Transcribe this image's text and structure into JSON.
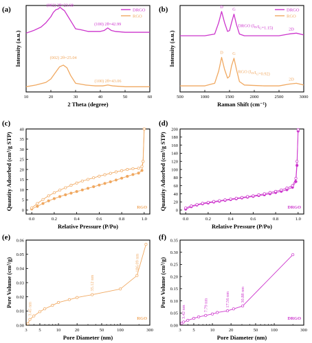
{
  "colors": {
    "magenta": "#cc33cc",
    "orange": "#f0a860",
    "axis": "#000000"
  },
  "chart_data": [
    {
      "id": "a",
      "panel_label": "(a)",
      "type": "line",
      "xlabel": "2 Theta (degree)",
      "ylabel": "Intensity (a.u.)",
      "xlim": [
        10,
        60
      ],
      "xticks": [
        10,
        20,
        30,
        40,
        50,
        60
      ],
      "yticks": [],
      "legend": {
        "position": "top-right",
        "entries": [
          "DRGO",
          "RGO"
        ]
      },
      "series": [
        {
          "name": "DRGO",
          "color": "#cc33cc",
          "x": [
            10,
            13,
            16,
            18,
            20,
            21,
            22,
            23,
            23.68,
            24.5,
            25.5,
            27,
            28.5,
            30,
            32,
            35,
            38,
            40,
            41.5,
            42.99,
            44.5,
            46,
            50,
            55,
            60
          ],
          "y": [
            0.68,
            0.71,
            0.75,
            0.8,
            0.87,
            0.92,
            0.95,
            0.96,
            0.98,
            0.96,
            0.94,
            0.87,
            0.8,
            0.73,
            0.72,
            0.7,
            0.7,
            0.7,
            0.71,
            0.74,
            0.71,
            0.7,
            0.69,
            0.69,
            0.69
          ]
        },
        {
          "name": "RGO",
          "color": "#f0a860",
          "x": [
            10,
            14,
            18,
            20,
            22,
            23.5,
            25.04,
            26.5,
            28,
            30,
            34,
            38,
            41,
            43.06,
            45,
            50,
            55,
            60
          ],
          "y": [
            0.06,
            0.08,
            0.11,
            0.15,
            0.23,
            0.29,
            0.31,
            0.28,
            0.19,
            0.1,
            0.08,
            0.07,
            0.07,
            0.08,
            0.07,
            0.06,
            0.06,
            0.06
          ]
        }
      ],
      "annotations": [
        {
          "text": "(002) 2θ=23.68",
          "x": 23.68,
          "y": 0.99,
          "series": 0
        },
        {
          "text": "(100) 2θ=42.99",
          "x": 42.99,
          "y": 0.77,
          "series": 0
        },
        {
          "text": "(002) 2θ=25.04",
          "x": 25.04,
          "y": 0.38,
          "series": 1
        },
        {
          "text": "(100) 2θ=43.06",
          "x": 43.06,
          "y": 0.11,
          "series": 1
        }
      ]
    },
    {
      "id": "b",
      "panel_label": "(b)",
      "type": "line",
      "xlabel": "Raman Shift (cm⁻¹)",
      "ylabel": "Intensity (a.u.)",
      "xlim": [
        500,
        3000
      ],
      "xticks": [
        500,
        1000,
        1500,
        2000,
        2500,
        3000
      ],
      "yticks": [],
      "legend": {
        "position": "top-right",
        "entries": [
          "DRGO",
          "RGO"
        ]
      },
      "series": [
        {
          "name": "DRGO",
          "color": "#cc33cc",
          "x": [
            500,
            1000,
            1200,
            1280,
            1340,
            1400,
            1460,
            1500,
            1540,
            1590,
            1640,
            1700,
            1800,
            2200,
            2500,
            2700,
            2850,
            3000
          ],
          "y": [
            0.65,
            0.65,
            0.67,
            0.8,
            0.93,
            0.8,
            0.7,
            0.71,
            0.8,
            0.9,
            0.78,
            0.67,
            0.65,
            0.65,
            0.65,
            0.67,
            0.68,
            0.66
          ]
        },
        {
          "name": "RGO",
          "color": "#f0a860",
          "x": [
            500,
            1000,
            1200,
            1280,
            1340,
            1400,
            1460,
            1500,
            1540,
            1590,
            1640,
            1700,
            1800,
            2200,
            2500,
            2700,
            2850,
            3000
          ],
          "y": [
            0.07,
            0.07,
            0.1,
            0.24,
            0.4,
            0.26,
            0.16,
            0.18,
            0.3,
            0.39,
            0.26,
            0.12,
            0.08,
            0.07,
            0.07,
            0.09,
            0.1,
            0.08
          ]
        }
      ],
      "annotations": [
        {
          "text": "D",
          "x": 1340,
          "y": 0.97,
          "series": 0
        },
        {
          "text": "G",
          "x": 1590,
          "y": 0.94,
          "series": 0
        },
        {
          "text": "DRGO  (I",
          "sub": "D",
          "mid": "/I",
          "sub2": "G",
          "end": "=1.15)",
          "x": 1590,
          "y": 0.75,
          "series": 0,
          "anchor": "start"
        },
        {
          "text": "2D",
          "x": 2750,
          "y": 0.71,
          "series": 0
        },
        {
          "text": "D",
          "x": 1340,
          "y": 0.44,
          "series": 1
        },
        {
          "text": "G",
          "x": 1590,
          "y": 0.43,
          "series": 1
        },
        {
          "text": "RGO  (I",
          "sub": "D",
          "mid": "/I",
          "sub2": "G",
          "end": "=0.92)",
          "x": 1590,
          "y": 0.22,
          "series": 1,
          "anchor": "start"
        },
        {
          "text": "2D",
          "x": 2750,
          "y": 0.13,
          "series": 1
        }
      ]
    },
    {
      "id": "c",
      "panel_label": "(c)",
      "type": "line",
      "xlabel": "Relative Pressure (P/Po)",
      "ylabel": "Quantity Adsorbed (cm³/g STP)",
      "xlim": [
        -0.05,
        1.05
      ],
      "ylim": [
        -2,
        40
      ],
      "xticks": [
        0.0,
        0.2,
        0.4,
        0.6,
        0.8,
        1.0
      ],
      "yticks": [
        0,
        5,
        10,
        15,
        20,
        25,
        30,
        35,
        40
      ],
      "legend": {
        "position": "bottom-right",
        "entries": [
          "RGO"
        ]
      },
      "series": [
        {
          "name": "adsorption",
          "color": "#f0a860",
          "marker": "filled",
          "x": [
            0.0,
            0.05,
            0.1,
            0.15,
            0.2,
            0.25,
            0.3,
            0.35,
            0.4,
            0.45,
            0.5,
            0.55,
            0.6,
            0.65,
            0.7,
            0.75,
            0.8,
            0.85,
            0.9,
            0.95,
            0.98,
            0.99,
            1.0
          ],
          "y": [
            0.5,
            1.8,
            3.2,
            4.5,
            5.6,
            6.6,
            7.5,
            8.3,
            9.1,
            9.9,
            10.7,
            11.5,
            12.3,
            13.1,
            13.9,
            14.8,
            15.7,
            16.6,
            17.5,
            18.2,
            19.5,
            24,
            40
          ]
        },
        {
          "name": "desorption",
          "color": "#f0a860",
          "marker": "open",
          "x": [
            1.0,
            0.99,
            0.98,
            0.95,
            0.9,
            0.85,
            0.8,
            0.75,
            0.7,
            0.65,
            0.6,
            0.55,
            0.5,
            0.45,
            0.4,
            0.35,
            0.3,
            0.25,
            0.2,
            0.15,
            0.1,
            0.05,
            0.0
          ],
          "y": [
            40,
            24,
            21.5,
            20.6,
            20.4,
            20.0,
            19.4,
            18.8,
            18.1,
            17.4,
            16.7,
            15.9,
            15.1,
            14.3,
            13.3,
            12.2,
            11.0,
            9.8,
            8.5,
            7.0,
            5.2,
            3.2,
            1.0
          ]
        }
      ]
    },
    {
      "id": "d",
      "panel_label": "(d)",
      "type": "line",
      "xlabel": "Relative Pressure (P/Po)",
      "ylabel": "Quantity Adsorbed (cm³/g STP)",
      "xlim": [
        -0.05,
        1.05
      ],
      "ylim": [
        -10,
        200
      ],
      "xticks": [
        0.0,
        0.2,
        0.4,
        0.6,
        0.8,
        1.0
      ],
      "yticks": [
        0,
        20,
        40,
        60,
        80,
        100,
        120,
        140,
        160,
        180,
        200
      ],
      "legend": {
        "position": "bottom-right",
        "entries": [
          "DRGO"
        ]
      },
      "series": [
        {
          "name": "adsorption",
          "color": "#cc33cc",
          "marker": "filled",
          "x": [
            0.0,
            0.05,
            0.1,
            0.15,
            0.2,
            0.25,
            0.3,
            0.35,
            0.4,
            0.45,
            0.5,
            0.55,
            0.6,
            0.65,
            0.7,
            0.75,
            0.8,
            0.85,
            0.9,
            0.95,
            0.98,
            0.99,
            1.0
          ],
          "y": [
            2,
            8,
            12,
            15,
            17,
            19.5,
            21.5,
            23.5,
            25.5,
            27.5,
            29.5,
            31.5,
            33.5,
            35.5,
            37.5,
            40,
            43,
            46,
            50,
            56,
            70,
            110,
            195
          ]
        },
        {
          "name": "desorption",
          "color": "#cc33cc",
          "marker": "open",
          "x": [
            1.0,
            0.99,
            0.98,
            0.95,
            0.9,
            0.85,
            0.8,
            0.75,
            0.7,
            0.65,
            0.6,
            0.55,
            0.5,
            0.45,
            0.4,
            0.35,
            0.3,
            0.25,
            0.2,
            0.15,
            0.1,
            0.05,
            0.0
          ],
          "y": [
            198,
            120,
            78,
            60,
            54,
            49.5,
            46,
            43,
            40,
            37.5,
            35,
            33,
            31,
            29,
            27,
            25,
            23,
            21,
            19,
            16.5,
            13.5,
            10,
            5
          ]
        }
      ]
    },
    {
      "id": "e",
      "panel_label": "(e)",
      "type": "line",
      "xscale": "log",
      "xlabel": "Pore Diameter (nm)",
      "ylabel": "Pore Volume (cm³/g)",
      "xlim": [
        3,
        300
      ],
      "ylim": [
        0,
        0.06
      ],
      "xticks": [
        3,
        5,
        10,
        20,
        50,
        100,
        300
      ],
      "yticks": [
        0.0,
        0.01,
        0.02,
        0.03,
        0.04,
        0.05,
        0.06
      ],
      "legend": {
        "position": "bottom-right",
        "entries": [
          "RGO"
        ]
      },
      "series": [
        {
          "name": "RGO",
          "color": "#f0a860",
          "marker": "open",
          "x": [
            3.2,
            3.45,
            4,
            5,
            6,
            8,
            10,
            15,
            20,
            35.12,
            100,
            186.09,
            260
          ],
          "y": [
            0.001,
            0.004,
            0.0065,
            0.0095,
            0.0115,
            0.014,
            0.016,
            0.018,
            0.0195,
            0.0215,
            0.0255,
            0.035,
            0.057
          ]
        }
      ],
      "annotations": [
        {
          "text": "3.45 nm",
          "x": 3.45,
          "y": 0.005,
          "series": 0
        },
        {
          "text": "35.12 nm",
          "x": 35.12,
          "y": 0.0225,
          "series": 0
        },
        {
          "text": "186.09 nm",
          "x": 186.09,
          "y": 0.036,
          "series": 0
        }
      ]
    },
    {
      "id": "f",
      "panel_label": "(f)",
      "type": "line",
      "xscale": "log",
      "xlabel": "Pore Diameter (nm)",
      "ylabel": "Pore Volume (cm³/g)",
      "xlim": [
        3,
        300
      ],
      "ylim": [
        0,
        0.35
      ],
      "xticks": [
        3,
        5,
        10,
        20,
        50,
        100,
        300
      ],
      "yticks": [
        0.0,
        0.05,
        0.1,
        0.15,
        0.2,
        0.25,
        0.3,
        0.35
      ],
      "legend": {
        "position": "bottom-right",
        "entries": [
          "DRGO"
        ]
      },
      "series": [
        {
          "name": "DRGO",
          "color": "#cc33cc",
          "marker": "open",
          "x": [
            3.2,
            3.42,
            4,
            5,
            6,
            7.79,
            10,
            12,
            17.56,
            22,
            30.88,
            200
          ],
          "y": [
            0.008,
            0.013,
            0.02,
            0.028,
            0.034,
            0.04,
            0.046,
            0.052,
            0.059,
            0.067,
            0.079,
            0.29
          ]
        }
      ],
      "annotations": [
        {
          "text": "3.42 nm",
          "x": 3.42,
          "y": 0.017,
          "series": 0
        },
        {
          "text": "7.79 nm",
          "x": 7.79,
          "y": 0.044,
          "series": 0
        },
        {
          "text": "17.56 nm",
          "x": 17.56,
          "y": 0.063,
          "series": 0
        },
        {
          "text": "30.88 nm",
          "x": 30.88,
          "y": 0.083,
          "series": 0
        }
      ]
    }
  ]
}
